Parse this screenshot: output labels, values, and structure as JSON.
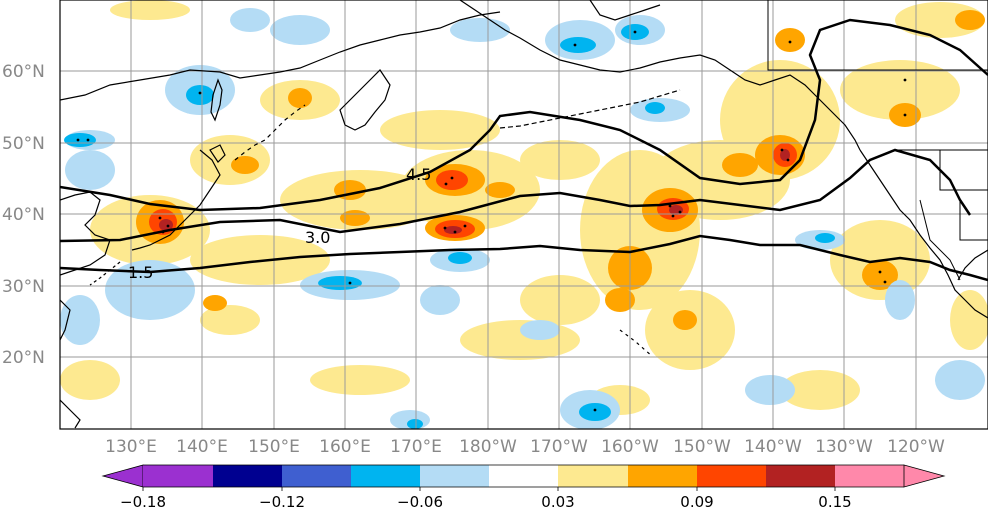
{
  "map": {
    "lat_labels": [
      "20°N",
      "30°N",
      "40°N",
      "50°N",
      "60°N"
    ],
    "lon_labels": [
      "130°E",
      "140°E",
      "150°E",
      "160°E",
      "170°E",
      "180°W",
      "170°W",
      "160°W",
      "150°W",
      "140°W",
      "130°W",
      "120°W"
    ],
    "contour_labels": [
      "4.5",
      "3.0",
      "1.5"
    ]
  },
  "colorbar": {
    "tick_labels": [
      "−0.18",
      "−0.12",
      "−0.06",
      "0.03",
      "0.09",
      "0.15"
    ],
    "colors": [
      "#9b30d0",
      "#000090",
      "#3f5fd0",
      "#00b4f0",
      "#b4dcf5",
      "#ffffff",
      "#fde990",
      "#ffa500",
      "#ff4500",
      "#b22222",
      "#ff88aa"
    ]
  }
}
